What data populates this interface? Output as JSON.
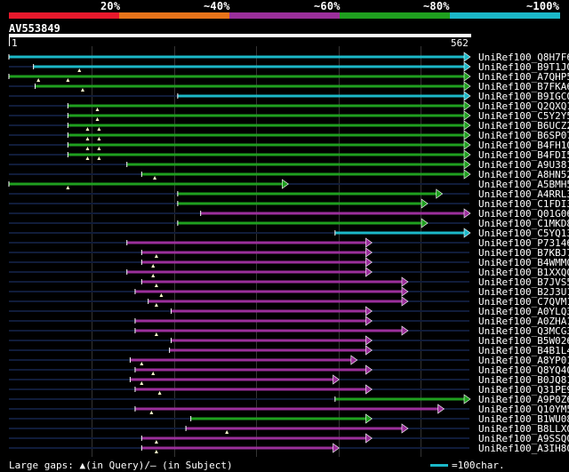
{
  "scale": {
    "percent_labels": [
      "20%",
      "~40%",
      "~60%",
      "~80%",
      "~100%"
    ],
    "colors": [
      "#e8192c",
      "#e8741a",
      "#9b2f9b",
      "#1f9f1f",
      "#1bb8c8"
    ]
  },
  "query": {
    "name": "AV553849",
    "start": "1",
    "end": "562"
  },
  "hits": [
    {
      "name": "UniRef100_Q8H7F6",
      "color": "#1bb8c8",
      "from": 0,
      "to": 562,
      "gaps": []
    },
    {
      "name": "UniRef100_B9T1J0",
      "color": "#1bb8c8",
      "from": 30,
      "to": 562,
      "gaps": [
        86
      ]
    },
    {
      "name": "UniRef100_A7QHP5",
      "color": "#1f9f1f",
      "from": 0,
      "to": 562,
      "gaps": [
        36,
        72
      ]
    },
    {
      "name": "UniRef100_B7FKA6",
      "color": "#1f9f1f",
      "from": 32,
      "to": 562,
      "gaps": [
        90
      ]
    },
    {
      "name": "UniRef100_B9IGC0",
      "color": "#1bb8c8",
      "from": 206,
      "to": 562,
      "gaps": []
    },
    {
      "name": "UniRef100_Q2QXQ1",
      "color": "#1f9f1f",
      "from": 72,
      "to": 562,
      "gaps": [
        108
      ]
    },
    {
      "name": "UniRef100_C5Y2Y5",
      "color": "#1f9f1f",
      "from": 72,
      "to": 562,
      "gaps": [
        108
      ]
    },
    {
      "name": "UniRef100_B6UCZ2",
      "color": "#1f9f1f",
      "from": 72,
      "to": 562,
      "gaps": [
        96,
        110
      ]
    },
    {
      "name": "UniRef100_B6SP07",
      "color": "#1f9f1f",
      "from": 72,
      "to": 562,
      "gaps": [
        96,
        110
      ]
    },
    {
      "name": "UniRef100_B4FH10",
      "color": "#1f9f1f",
      "from": 72,
      "to": 562,
      "gaps": [
        96,
        110
      ]
    },
    {
      "name": "UniRef100_B4FDI5",
      "color": "#1f9f1f",
      "from": 72,
      "to": 562,
      "gaps": [
        96,
        110
      ]
    },
    {
      "name": "UniRef100_A9U381",
      "color": "#1f9f1f",
      "from": 144,
      "to": 562,
      "gaps": []
    },
    {
      "name": "UniRef100_A8HN52",
      "color": "#1f9f1f",
      "from": 162,
      "to": 562,
      "gaps": [
        178
      ]
    },
    {
      "name": "UniRef100_A5BMH5",
      "color": "#1f9f1f",
      "from": 0,
      "to": 340,
      "gaps": [
        72
      ]
    },
    {
      "name": "UniRef100_A4RRL3",
      "color": "#1f9f1f",
      "from": 206,
      "to": 528,
      "gaps": []
    },
    {
      "name": "UniRef100_C1FDI3",
      "color": "#1f9f1f",
      "from": 206,
      "to": 510,
      "gaps": []
    },
    {
      "name": "UniRef100_Q01G06",
      "color": "#9b2f9b",
      "from": 234,
      "to": 562,
      "gaps": []
    },
    {
      "name": "UniRef100_C1MKD8",
      "color": "#1f9f1f",
      "from": 206,
      "to": 510,
      "gaps": []
    },
    {
      "name": "UniRef100_C5YQ13",
      "color": "#1bb8c8",
      "from": 398,
      "to": 562,
      "gaps": []
    },
    {
      "name": "UniRef100_P73146",
      "color": "#9b2f9b",
      "from": 144,
      "to": 442,
      "gaps": []
    },
    {
      "name": "UniRef100_B7KBJ7",
      "color": "#9b2f9b",
      "from": 162,
      "to": 442,
      "gaps": [
        180
      ]
    },
    {
      "name": "UniRef100_B4WMM0",
      "color": "#9b2f9b",
      "from": 162,
      "to": 442,
      "gaps": [
        176
      ]
    },
    {
      "name": "UniRef100_B1XXQ0",
      "color": "#9b2f9b",
      "from": 144,
      "to": 442,
      "gaps": [
        176
      ]
    },
    {
      "name": "UniRef100_B7JVS5",
      "color": "#9b2f9b",
      "from": 162,
      "to": 486,
      "gaps": [
        180
      ]
    },
    {
      "name": "UniRef100_B2J3U1",
      "color": "#9b2f9b",
      "from": 154,
      "to": 486,
      "gaps": [
        186
      ]
    },
    {
      "name": "UniRef100_C7QVM1",
      "color": "#9b2f9b",
      "from": 170,
      "to": 486,
      "gaps": [
        180
      ]
    },
    {
      "name": "UniRef100_A0YLQ3",
      "color": "#9b2f9b",
      "from": 198,
      "to": 442,
      "gaps": []
    },
    {
      "name": "UniRef100_A0ZHA1",
      "color": "#9b2f9b",
      "from": 154,
      "to": 442,
      "gaps": []
    },
    {
      "name": "UniRef100_Q3MCG3",
      "color": "#9b2f9b",
      "from": 154,
      "to": 486,
      "gaps": [
        180
      ]
    },
    {
      "name": "UniRef100_B5W026",
      "color": "#9b2f9b",
      "from": 198,
      "to": 442,
      "gaps": []
    },
    {
      "name": "UniRef100_B4B1L4",
      "color": "#9b2f9b",
      "from": 196,
      "to": 442,
      "gaps": []
    },
    {
      "name": "UniRef100_A8YP01",
      "color": "#9b2f9b",
      "from": 148,
      "to": 424,
      "gaps": [
        162
      ]
    },
    {
      "name": "UniRef100_Q8YQ40",
      "color": "#9b2f9b",
      "from": 154,
      "to": 442,
      "gaps": [
        176
      ]
    },
    {
      "name": "UniRef100_B0JQ81",
      "color": "#9b2f9b",
      "from": 148,
      "to": 402,
      "gaps": [
        162
      ]
    },
    {
      "name": "UniRef100_Q31PE9",
      "color": "#9b2f9b",
      "from": 154,
      "to": 442,
      "gaps": [
        184
      ]
    },
    {
      "name": "UniRef100_A9P0Z6",
      "color": "#1f9f1f",
      "from": 398,
      "to": 562,
      "gaps": []
    },
    {
      "name": "UniRef100_Q10YM5",
      "color": "#9b2f9b",
      "from": 154,
      "to": 530,
      "gaps": [
        174
      ]
    },
    {
      "name": "UniRef100_B1WU08",
      "color": "#1f9f1f",
      "from": 222,
      "to": 442,
      "gaps": []
    },
    {
      "name": "UniRef100_B8LLX0",
      "color": "#9b2f9b",
      "from": 216,
      "to": 486,
      "gaps": [
        266
      ]
    },
    {
      "name": "UniRef100_A9SSQ0",
      "color": "#9b2f9b",
      "from": 162,
      "to": 442,
      "gaps": [
        180
      ]
    },
    {
      "name": "UniRef100_A3IH80",
      "color": "#9b2f9b",
      "from": 162,
      "to": 402,
      "gaps": [
        180
      ]
    }
  ],
  "legend": {
    "text": "Large gaps: ▲(in Query)/– (in Subject)",
    "scale_text": "=100char."
  }
}
